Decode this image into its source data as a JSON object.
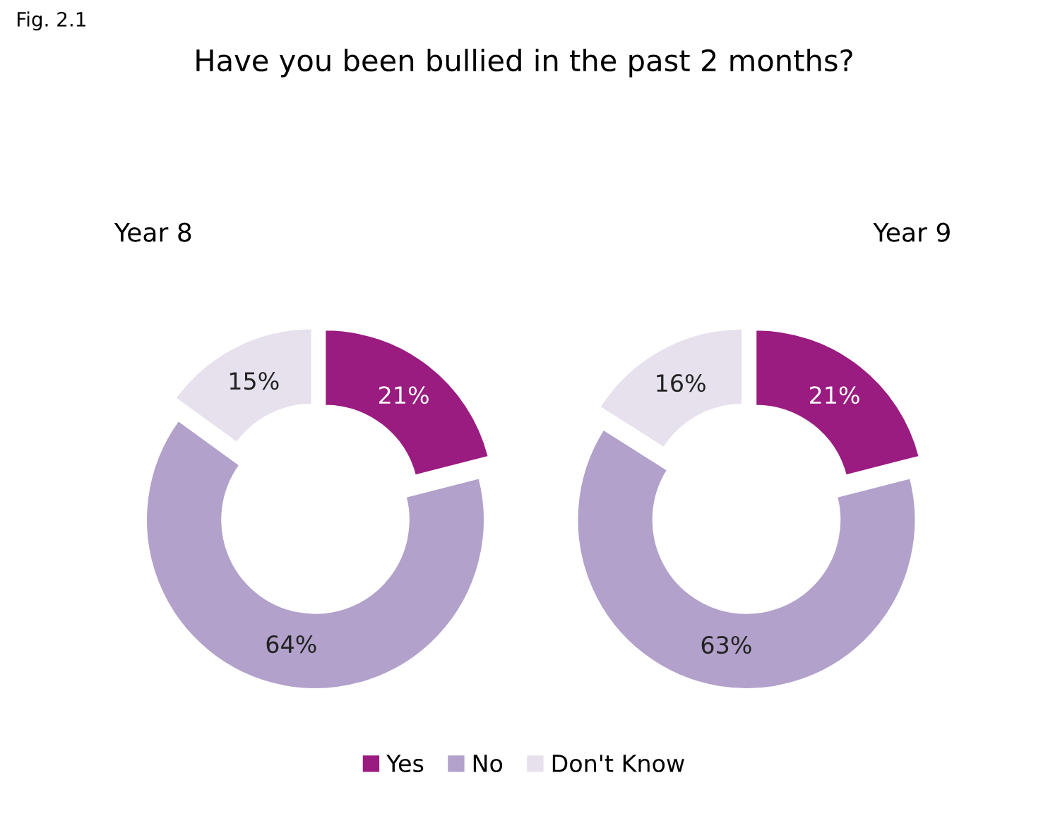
{
  "chart_data": [
    {
      "type": "donut",
      "title": "Have you been bullied in the past 2 months?",
      "subtitle": "Year 8",
      "annotations": [
        "Fig. 2.1"
      ],
      "categories": [
        "Yes",
        "No",
        "Don't Know"
      ],
      "values": [
        21,
        64,
        15
      ],
      "value_labels": [
        "21%",
        "64%",
        "15%"
      ],
      "colors": [
        "#9a1c80",
        "#b1a1cb",
        "#e7e1ee"
      ],
      "legend": "bottom"
    },
    {
      "type": "donut",
      "subtitle": "Year 9",
      "categories": [
        null,
        null,
        null
      ],
      "values": [
        21,
        63,
        16
      ],
      "value_labels": [
        "21%",
        "63%",
        "16%"
      ],
      "colors": [
        "#9a1c80",
        "#b1a1cb",
        "#e7e1ee"
      ]
    }
  ]
}
